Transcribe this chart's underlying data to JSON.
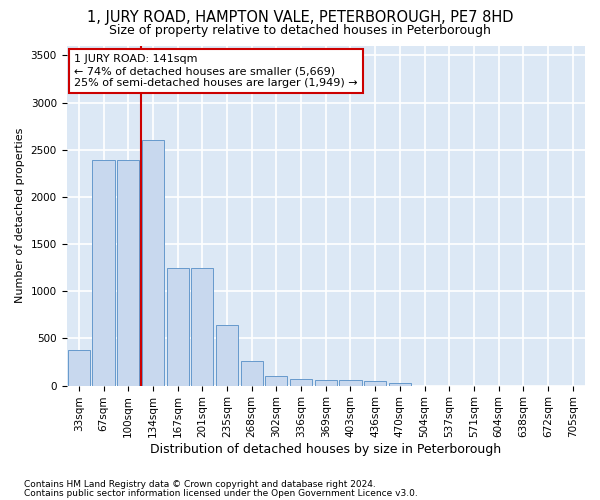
{
  "title": "1, JURY ROAD, HAMPTON VALE, PETERBOROUGH, PE7 8HD",
  "subtitle": "Size of property relative to detached houses in Peterborough",
  "xlabel": "Distribution of detached houses by size in Peterborough",
  "ylabel": "Number of detached properties",
  "footnote1": "Contains HM Land Registry data © Crown copyright and database right 2024.",
  "footnote2": "Contains public sector information licensed under the Open Government Licence v3.0.",
  "annotation_line1": "1 JURY ROAD: 141sqm",
  "annotation_line2": "← 74% of detached houses are smaller (5,669)",
  "annotation_line3": "25% of semi-detached houses are larger (1,949) →",
  "bar_color": "#c8d8ee",
  "bar_edge_color": "#6699cc",
  "vline_color": "#cc0000",
  "vline_bin_index": 3,
  "categories": [
    "33sqm",
    "67sqm",
    "100sqm",
    "134sqm",
    "167sqm",
    "201sqm",
    "235sqm",
    "268sqm",
    "302sqm",
    "336sqm",
    "369sqm",
    "403sqm",
    "436sqm",
    "470sqm",
    "504sqm",
    "537sqm",
    "571sqm",
    "604sqm",
    "638sqm",
    "672sqm",
    "705sqm"
  ],
  "values": [
    380,
    2390,
    2390,
    2600,
    1250,
    1250,
    640,
    260,
    100,
    65,
    60,
    55,
    45,
    30,
    0,
    0,
    0,
    0,
    0,
    0,
    0
  ],
  "ylim": [
    0,
    3600
  ],
  "yticks": [
    0,
    500,
    1000,
    1500,
    2000,
    2500,
    3000,
    3500
  ],
  "background_color": "#dce8f5",
  "grid_color": "#ffffff",
  "title_fontsize": 10.5,
  "subtitle_fontsize": 9,
  "ylabel_fontsize": 8,
  "xlabel_fontsize": 9,
  "tick_fontsize": 7.5,
  "annot_fontsize": 8,
  "footnote_fontsize": 6.5
}
